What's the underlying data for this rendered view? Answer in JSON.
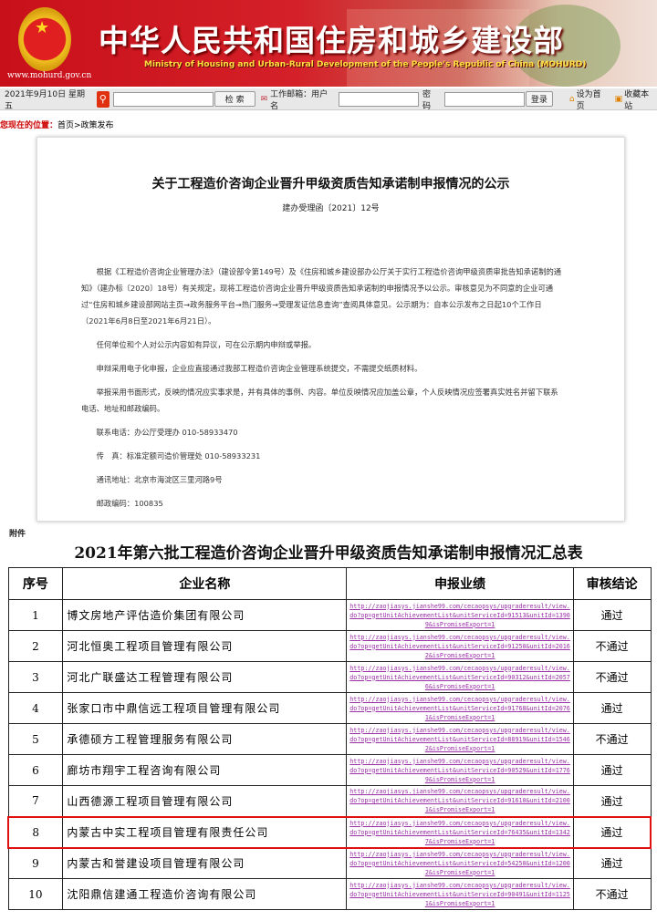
{
  "banner": {
    "title": "中华人民共和国住房和城乡建设部",
    "subtitle": "Ministry of Housing and Urban-Rural Development of the People's Republic of China (MOHURD)",
    "url": "www.mohurd.gov.cn"
  },
  "toolbar": {
    "date": "2021年9月10日 星期五",
    "search_button": "检 索",
    "mail_label": "工作邮箱：用户名",
    "password_label": "密码",
    "login_button": "登录",
    "set_home": "设为首页",
    "bookmark": "收藏本站"
  },
  "breadcrumb": {
    "label": "您现在的位置：",
    "path": "首页>政策发布"
  },
  "doc": {
    "title": "关于工程造价咨询企业晋升甲级资质告知承诺制申报情况的公示",
    "number": "建办受理函〔2021〕12号",
    "paragraphs": [
      "根据《工程造价咨询企业管理办法》（建设部令第149号）及《住房和城乡建设部办公厅关于实行工程造价咨询甲级资质审批告知承诺制的通知》（建办标〔2020〕18号）有关规定，现将工程造价咨询企业晋升甲级资质告知承诺制的申报情况予以公示。审核意见为不同意的企业可通过“住房和城乡建设部网站主页→政务服务平台→热门服务→受理发证信息查询”查阅具体意见。公示期为：自本公示发布之日起10个工作日（2021年6月8日至2021年6月21日）。",
      "任何单位和个人对公示内容如有异议，可在公示期内申辩或举报。",
      "申辩采用电子化申报，企业应直接通过我部工程造价咨询企业管理系统提交，不需提交纸质材料。",
      "举报采用书面形式，反映的情况应实事求是，并有具体的事例、内容。单位反映情况应加盖公章，个人反映情况应签署真实姓名并留下联系电话、地址和邮政编码。",
      "联系电话：办公厅受理办 010-58933470",
      "传　真：标准定额司造价管理处 010-58933231",
      "通讯地址：北京市海淀区三里河路9号",
      "邮政编码：100835"
    ]
  },
  "attachment_label": "附件",
  "table": {
    "title": "2021年第六批工程造价咨询企业晋升甲级资质告知承诺制申报情况汇总表",
    "headers": [
      "序号",
      "企业名称",
      "申报业绩",
      "审核结论"
    ],
    "highlight_color": "#e01010",
    "rows": [
      {
        "no": "1",
        "name": "博文房地产评估造价集团有限公司",
        "link": "http://zaojiasys.jianshe99.com/cecaopsys/upgraderesult/view.do?op=getUnitAchievementList&unitServiceId=91513&unitId=13909&isPromiseExport=1",
        "result": "通过"
      },
      {
        "no": "2",
        "name": "河北恒奥工程项目管理有限公司",
        "link": "http://zaojiasys.jianshe99.com/cecaopsys/upgraderesult/view.do?op=getUnitAchievementList&unitServiceId=91250&unitId=20162&isPromiseExport=1",
        "result": "不通过"
      },
      {
        "no": "3",
        "name": "河北广联盛达工程管理有限公司",
        "link": "http://zaojiasys.jianshe99.com/cecaopsys/upgraderesult/view.do?op=getUnitAchievementList&unitServiceId=90312&unitId=20576&isPromiseExport=1",
        "result": "不通过"
      },
      {
        "no": "4",
        "name": "张家口市中鼎信远工程项目管理有限公司",
        "link": "http://zaojiasys.jianshe99.com/cecaopsys/upgraderesult/view.do?op=getUnitAchievementList&unitServiceId=91768&unitId=20761&isPromiseExport=1",
        "result": "通过"
      },
      {
        "no": "5",
        "name": "承德硕方工程管理服务有限公司",
        "link": "http://zaojiasys.jianshe99.com/cecaopsys/upgraderesult/view.do?op=getUnitAchievementList&unitServiceId=88919&unitId=15462&isPromiseExport=1",
        "result": "不通过"
      },
      {
        "no": "6",
        "name": "廊坊市翔宇工程咨询有限公司",
        "link": "http://zaojiasys.jianshe99.com/cecaopsys/upgraderesult/view.do?op=getUnitAchievementList&unitServiceId=90529&unitId=17769&isPromiseExport=1",
        "result": "通过"
      },
      {
        "no": "7",
        "name": "山西德源工程项目管理有限公司",
        "link": "http://zaojiasys.jianshe99.com/cecaopsys/upgraderesult/view.do?op=getUnitAchievementList&unitServiceId=91610&unitId=21001&isPromiseExport=1",
        "result": "通过"
      },
      {
        "no": "8",
        "name": "内蒙古中实工程项目管理有限责任公司",
        "link": "http://zaojiasys.jianshe99.com/cecaopsys/upgraderesult/view.do?op=getUnitAchievementList&unitServiceId=76435&unitId=13427&isPromiseExport=1",
        "result": "通过",
        "highlighted": true
      },
      {
        "no": "9",
        "name": "内蒙古和誉建设项目管理有限公司",
        "link": "http://zaojiasys.jianshe99.com/cecaopsys/upgraderesult/view.do?op=getUnitAchievementList&unitServiceId=54250&unitId=12002&isPromiseExport=1",
        "result": "通过"
      },
      {
        "no": "10",
        "name": "沈阳鼎信建通工程造价咨询有限公司",
        "link": "http://zaojiasys.jianshe99.com/cecaopsys/upgraderesult/view.do?op=getUnitAchievementList&unitServiceId=90491&unitId=11251&isPromiseExport=1",
        "result": "不通过"
      }
    ]
  }
}
